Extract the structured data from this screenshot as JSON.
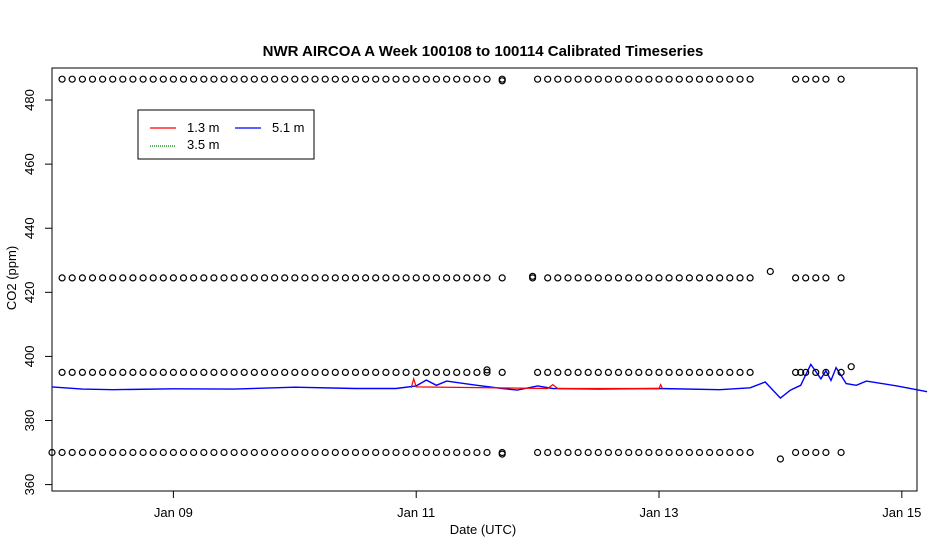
{
  "chart_data": {
    "type": "scatter",
    "title": "NWR AIRCOA A  Week 100108 to 100114  Calibrated Timeseries",
    "xlabel": "Date (UTC)",
    "ylabel": "CO2 (ppm)",
    "xlim": [
      "2010-01-08",
      "2010-01-15T03:00"
    ],
    "ylim": [
      358,
      490
    ],
    "x_ticks": [
      {
        "label": "Jan 09",
        "value": "2010-01-09"
      },
      {
        "label": "Jan 11",
        "value": "2010-01-11"
      },
      {
        "label": "Jan 13",
        "value": "2010-01-13"
      },
      {
        "label": "Jan 15",
        "value": "2010-01-15"
      }
    ],
    "y_ticks": [
      360,
      380,
      400,
      420,
      440,
      460,
      480
    ],
    "legend": {
      "position": "top-left",
      "entries": [
        {
          "label": "1.3 m",
          "color": "#ff0000"
        },
        {
          "label": "3.5 m",
          "color": "#008000"
        },
        {
          "label": "5.1 m",
          "color": "#0000ff"
        }
      ]
    },
    "colors": {
      "standards": "#000000",
      "line_1_3m": "#ff0000",
      "line_3_5m": "#008000",
      "line_5_1m": "#0000ff"
    },
    "series": [
      {
        "name": "5.1 m",
        "color": "#0000ff",
        "points": [
          [
            "2010-01-08T00:00",
            390.5
          ],
          [
            "2010-01-08T06:00",
            389.8
          ],
          [
            "2010-01-08T12:00",
            389.6
          ],
          [
            "2010-01-09T00:00",
            389.9
          ],
          [
            "2010-01-09T12:00",
            389.8
          ],
          [
            "2010-01-10T00:00",
            390.4
          ],
          [
            "2010-01-10T12:00",
            390.0
          ],
          [
            "2010-01-10T20:00",
            390.0
          ],
          [
            "2010-01-11T00:00",
            390.8
          ],
          [
            "2010-01-11T02:00",
            392.6
          ],
          [
            "2010-01-11T04:00",
            391.0
          ],
          [
            "2010-01-11T06:00",
            392.3
          ],
          [
            "2010-01-11T12:00",
            391.0
          ],
          [
            "2010-01-11T17:00",
            390.0
          ],
          [
            "2010-01-11T20:00",
            389.5
          ],
          [
            "2010-01-12T00:00",
            390.8
          ],
          [
            "2010-01-12T03:00",
            390.0
          ],
          [
            "2010-01-12T12:00",
            389.8
          ],
          [
            "2010-01-13T00:00",
            390.0
          ],
          [
            "2010-01-13T12:00",
            389.6
          ],
          [
            "2010-01-13T18:00",
            390.2
          ],
          [
            "2010-01-13T21:00",
            392.0
          ],
          [
            "2010-01-14T00:00",
            387.0
          ],
          [
            "2010-01-14T02:00",
            389.5
          ],
          [
            "2010-01-14T04:00",
            391.0
          ],
          [
            "2010-01-14T06:00",
            397.5
          ],
          [
            "2010-01-14T08:00",
            393.0
          ],
          [
            "2010-01-14T09:00",
            395.5
          ],
          [
            "2010-01-14T10:00",
            392.5
          ],
          [
            "2010-01-14T11:00",
            396.5
          ],
          [
            "2010-01-14T13:00",
            391.5
          ],
          [
            "2010-01-14T15:00",
            391.0
          ],
          [
            "2010-01-14T17:00",
            392.3
          ],
          [
            "2010-01-14T23:00",
            390.8
          ],
          [
            "2010-01-15T05:00",
            389.0
          ]
        ]
      },
      {
        "name": "1.3 m",
        "color": "#ff0000",
        "points": [
          [
            "2010-01-10T23:00",
            390.2
          ],
          [
            "2010-01-10T23:30",
            393.0
          ],
          [
            "2010-01-11T00:00",
            390.5
          ],
          [
            "2010-01-12T02:00",
            390.0
          ],
          [
            "2010-01-12T03:00",
            391.2
          ],
          [
            "2010-01-12T04:00",
            390.0
          ],
          [
            "2010-01-13T00:00",
            390.0
          ],
          [
            "2010-01-13T00:20",
            391.2
          ],
          [
            "2010-01-13T00:40",
            390.0
          ]
        ]
      }
    ],
    "standards": [
      {
        "level": 486.5,
        "times": [
          "2010-01-08T02:00",
          "2010-01-08T04:00",
          "2010-01-08T06:00",
          "2010-01-08T08:00",
          "2010-01-08T10:00",
          "2010-01-08T12:00",
          "2010-01-08T14:00",
          "2010-01-08T16:00",
          "2010-01-08T18:00",
          "2010-01-08T20:00",
          "2010-01-08T22:00",
          "2010-01-09T00:00",
          "2010-01-09T02:00",
          "2010-01-09T04:00",
          "2010-01-09T06:00",
          "2010-01-09T08:00",
          "2010-01-09T10:00",
          "2010-01-09T12:00",
          "2010-01-09T14:00",
          "2010-01-09T16:00",
          "2010-01-09T18:00",
          "2010-01-09T20:00",
          "2010-01-09T22:00",
          "2010-01-10T00:00",
          "2010-01-10T02:00",
          "2010-01-10T04:00",
          "2010-01-10T06:00",
          "2010-01-10T08:00",
          "2010-01-10T10:00",
          "2010-01-10T12:00",
          "2010-01-10T14:00",
          "2010-01-10T16:00",
          "2010-01-10T18:00",
          "2010-01-10T20:00",
          "2010-01-10T22:00",
          "2010-01-11T00:00",
          "2010-01-11T02:00",
          "2010-01-11T04:00",
          "2010-01-11T06:00",
          "2010-01-11T08:00",
          "2010-01-11T10:00",
          "2010-01-11T12:00",
          "2010-01-11T14:00",
          "2010-01-11T17:00",
          "2010-01-12T00:00",
          "2010-01-12T02:00",
          "2010-01-12T04:00",
          "2010-01-12T06:00",
          "2010-01-12T08:00",
          "2010-01-12T10:00",
          "2010-01-12T12:00",
          "2010-01-12T14:00",
          "2010-01-12T16:00",
          "2010-01-12T18:00",
          "2010-01-12T20:00",
          "2010-01-12T22:00",
          "2010-01-13T00:00",
          "2010-01-13T02:00",
          "2010-01-13T04:00",
          "2010-01-13T06:00",
          "2010-01-13T08:00",
          "2010-01-13T10:00",
          "2010-01-13T12:00",
          "2010-01-13T14:00",
          "2010-01-13T16:00",
          "2010-01-13T18:00",
          "2010-01-14T03:00",
          "2010-01-14T05:00",
          "2010-01-14T07:00",
          "2010-01-14T09:00",
          "2010-01-14T12:00"
        ]
      },
      {
        "level": 424.5,
        "times": [
          "2010-01-08T02:00",
          "2010-01-08T04:00",
          "2010-01-08T06:00",
          "2010-01-08T08:00",
          "2010-01-08T10:00",
          "2010-01-08T12:00",
          "2010-01-08T14:00",
          "2010-01-08T16:00",
          "2010-01-08T18:00",
          "2010-01-08T20:00",
          "2010-01-08T22:00",
          "2010-01-09T00:00",
          "2010-01-09T02:00",
          "2010-01-09T04:00",
          "2010-01-09T06:00",
          "2010-01-09T08:00",
          "2010-01-09T10:00",
          "2010-01-09T12:00",
          "2010-01-09T14:00",
          "2010-01-09T16:00",
          "2010-01-09T18:00",
          "2010-01-09T20:00",
          "2010-01-09T22:00",
          "2010-01-10T00:00",
          "2010-01-10T02:00",
          "2010-01-10T04:00",
          "2010-01-10T06:00",
          "2010-01-10T08:00",
          "2010-01-10T10:00",
          "2010-01-10T12:00",
          "2010-01-10T14:00",
          "2010-01-10T16:00",
          "2010-01-10T18:00",
          "2010-01-10T20:00",
          "2010-01-10T22:00",
          "2010-01-11T00:00",
          "2010-01-11T02:00",
          "2010-01-11T04:00",
          "2010-01-11T06:00",
          "2010-01-11T08:00",
          "2010-01-11T10:00",
          "2010-01-11T12:00",
          "2010-01-11T14:00",
          "2010-01-11T17:00",
          "2010-01-11T23:00",
          "2010-01-12T02:00",
          "2010-01-12T04:00",
          "2010-01-12T06:00",
          "2010-01-12T08:00",
          "2010-01-12T10:00",
          "2010-01-12T12:00",
          "2010-01-12T14:00",
          "2010-01-12T16:00",
          "2010-01-12T18:00",
          "2010-01-12T20:00",
          "2010-01-12T22:00",
          "2010-01-13T00:00",
          "2010-01-13T02:00",
          "2010-01-13T04:00",
          "2010-01-13T06:00",
          "2010-01-13T08:00",
          "2010-01-13T10:00",
          "2010-01-13T12:00",
          "2010-01-13T14:00",
          "2010-01-13T16:00",
          "2010-01-13T18:00",
          "2010-01-14T03:00",
          "2010-01-14T05:00",
          "2010-01-14T07:00",
          "2010-01-14T09:00",
          "2010-01-14T12:00"
        ]
      },
      {
        "level": 395.0,
        "times": [
          "2010-01-08T02:00",
          "2010-01-08T04:00",
          "2010-01-08T06:00",
          "2010-01-08T08:00",
          "2010-01-08T10:00",
          "2010-01-08T12:00",
          "2010-01-08T14:00",
          "2010-01-08T16:00",
          "2010-01-08T18:00",
          "2010-01-08T20:00",
          "2010-01-08T22:00",
          "2010-01-09T00:00",
          "2010-01-09T02:00",
          "2010-01-09T04:00",
          "2010-01-09T06:00",
          "2010-01-09T08:00",
          "2010-01-09T10:00",
          "2010-01-09T12:00",
          "2010-01-09T14:00",
          "2010-01-09T16:00",
          "2010-01-09T18:00",
          "2010-01-09T20:00",
          "2010-01-09T22:00",
          "2010-01-10T00:00",
          "2010-01-10T02:00",
          "2010-01-10T04:00",
          "2010-01-10T06:00",
          "2010-01-10T08:00",
          "2010-01-10T10:00",
          "2010-01-10T12:00",
          "2010-01-10T14:00",
          "2010-01-10T16:00",
          "2010-01-10T18:00",
          "2010-01-10T20:00",
          "2010-01-10T22:00",
          "2010-01-11T00:00",
          "2010-01-11T02:00",
          "2010-01-11T04:00",
          "2010-01-11T06:00",
          "2010-01-11T08:00",
          "2010-01-11T10:00",
          "2010-01-11T12:00",
          "2010-01-11T14:00",
          "2010-01-11T17:00",
          "2010-01-12T00:00",
          "2010-01-12T02:00",
          "2010-01-12T04:00",
          "2010-01-12T06:00",
          "2010-01-12T08:00",
          "2010-01-12T10:00",
          "2010-01-12T12:00",
          "2010-01-12T14:00",
          "2010-01-12T16:00",
          "2010-01-12T18:00",
          "2010-01-12T20:00",
          "2010-01-12T22:00",
          "2010-01-13T00:00",
          "2010-01-13T02:00",
          "2010-01-13T04:00",
          "2010-01-13T06:00",
          "2010-01-13T08:00",
          "2010-01-13T10:00",
          "2010-01-13T12:00",
          "2010-01-13T14:00",
          "2010-01-13T16:00",
          "2010-01-13T18:00",
          "2010-01-14T03:00",
          "2010-01-14T05:00",
          "2010-01-14T07:00",
          "2010-01-14T09:00",
          "2010-01-14T12:00"
        ]
      },
      {
        "level": 370.0,
        "times": [
          "2010-01-08T00:00",
          "2010-01-08T02:00",
          "2010-01-08T04:00",
          "2010-01-08T06:00",
          "2010-01-08T08:00",
          "2010-01-08T10:00",
          "2010-01-08T12:00",
          "2010-01-08T14:00",
          "2010-01-08T16:00",
          "2010-01-08T18:00",
          "2010-01-08T20:00",
          "2010-01-08T22:00",
          "2010-01-09T00:00",
          "2010-01-09T02:00",
          "2010-01-09T04:00",
          "2010-01-09T06:00",
          "2010-01-09T08:00",
          "2010-01-09T10:00",
          "2010-01-09T12:00",
          "2010-01-09T14:00",
          "2010-01-09T16:00",
          "2010-01-09T18:00",
          "2010-01-09T20:00",
          "2010-01-09T22:00",
          "2010-01-10T00:00",
          "2010-01-10T02:00",
          "2010-01-10T04:00",
          "2010-01-10T06:00",
          "2010-01-10T08:00",
          "2010-01-10T10:00",
          "2010-01-10T12:00",
          "2010-01-10T14:00",
          "2010-01-10T16:00",
          "2010-01-10T18:00",
          "2010-01-10T20:00",
          "2010-01-10T22:00",
          "2010-01-11T00:00",
          "2010-01-11T02:00",
          "2010-01-11T04:00",
          "2010-01-11T06:00",
          "2010-01-11T08:00",
          "2010-01-11T10:00",
          "2010-01-11T12:00",
          "2010-01-11T14:00",
          "2010-01-11T17:00",
          "2010-01-12T00:00",
          "2010-01-12T02:00",
          "2010-01-12T04:00",
          "2010-01-12T06:00",
          "2010-01-12T08:00",
          "2010-01-12T10:00",
          "2010-01-12T12:00",
          "2010-01-12T14:00",
          "2010-01-12T16:00",
          "2010-01-12T18:00",
          "2010-01-12T20:00",
          "2010-01-12T22:00",
          "2010-01-13T00:00",
          "2010-01-13T02:00",
          "2010-01-13T04:00",
          "2010-01-13T06:00",
          "2010-01-13T08:00",
          "2010-01-13T10:00",
          "2010-01-13T12:00",
          "2010-01-13T14:00",
          "2010-01-13T16:00",
          "2010-01-13T18:00",
          "2010-01-14T03:00",
          "2010-01-14T05:00",
          "2010-01-14T07:00",
          "2010-01-14T09:00",
          "2010-01-14T12:00"
        ]
      }
    ],
    "extra_points": [
      [
        "2010-01-11T17:00",
        486.0
      ],
      [
        "2010-01-11T23:00",
        425.0
      ],
      [
        "2010-01-11T14:00",
        395.8
      ],
      [
        "2010-01-11T17:00",
        369.5
      ],
      [
        "2010-01-13T22:00",
        426.5
      ],
      [
        "2010-01-14T00:00",
        368.0
      ],
      [
        "2010-01-14T14:00",
        396.8
      ],
      [
        "2010-01-14T04:00",
        395.0
      ]
    ]
  }
}
